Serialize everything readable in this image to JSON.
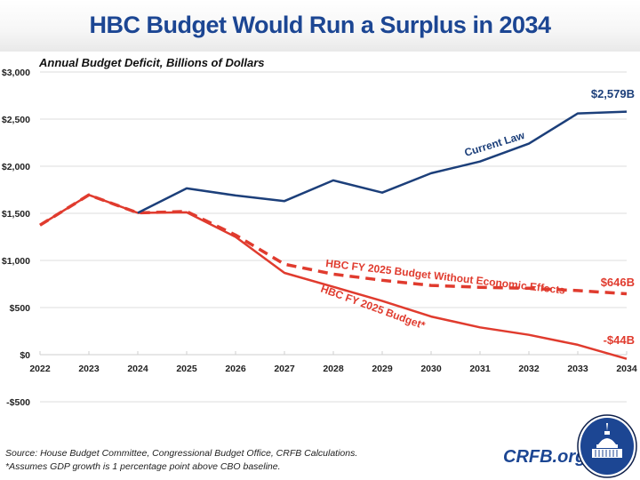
{
  "header": {
    "title": "HBC Budget Would Run a Surplus in 2034"
  },
  "footer": {
    "source": "Source: House Budget Committee, Congressional Budget Office, CRFB Calculations.",
    "note": "*Assumes GDP growth is 1 percentage point above CBO baseline.",
    "brand": "CRFB.org"
  },
  "colors": {
    "current_law": "#1c3f7a",
    "hbc": "#e03b2e",
    "title": "#1c4693",
    "grid": "#d9d9d9"
  },
  "chart_data": {
    "type": "line",
    "title": "HBC Budget Would Run a Surplus in 2034",
    "subtitle": "Annual Budget Deficit, Billions of Dollars",
    "xlabel": "",
    "ylabel": "Annual Budget Deficit, Billions of Dollars",
    "x": [
      2022,
      2023,
      2024,
      2025,
      2026,
      2027,
      2028,
      2029,
      2030,
      2031,
      2032,
      2033,
      2034
    ],
    "ylim": [
      -500,
      3000
    ],
    "yticks": [
      -500,
      0,
      500,
      1000,
      1500,
      2000,
      2500,
      3000
    ],
    "ytick_labels": [
      "-$500",
      "$0",
      "$500",
      "$1,000",
      "$1,500",
      "$2,000",
      "$2,500",
      "$3,000"
    ],
    "grid": true,
    "series": [
      {
        "name": "Current Law",
        "label": "Current Law",
        "style": "solid",
        "color": "#1c3f7a",
        "values": [
          null,
          null,
          1505,
          1765,
          1690,
          1630,
          1850,
          1720,
          1925,
          2050,
          2240,
          2560,
          2579
        ],
        "end_label": "$2,579B"
      },
      {
        "name": "HBC FY 2025 Budget Without Economic Effects",
        "label": "HBC FY 2025 Budget Without Economic Effects",
        "style": "dashed",
        "color": "#e03b2e",
        "values": [
          1375,
          1695,
          1505,
          1520,
          1270,
          960,
          855,
          790,
          735,
          715,
          705,
          680,
          646
        ],
        "end_label": "$646B"
      },
      {
        "name": "HBC FY 2025 Budget*",
        "label": "HBC FY 2025 Budget*",
        "style": "solid",
        "color": "#e03b2e",
        "values": [
          1375,
          1695,
          1505,
          1510,
          1250,
          868,
          720,
          570,
          405,
          290,
          210,
          105,
          -44
        ],
        "end_label": "-$44B"
      }
    ]
  }
}
